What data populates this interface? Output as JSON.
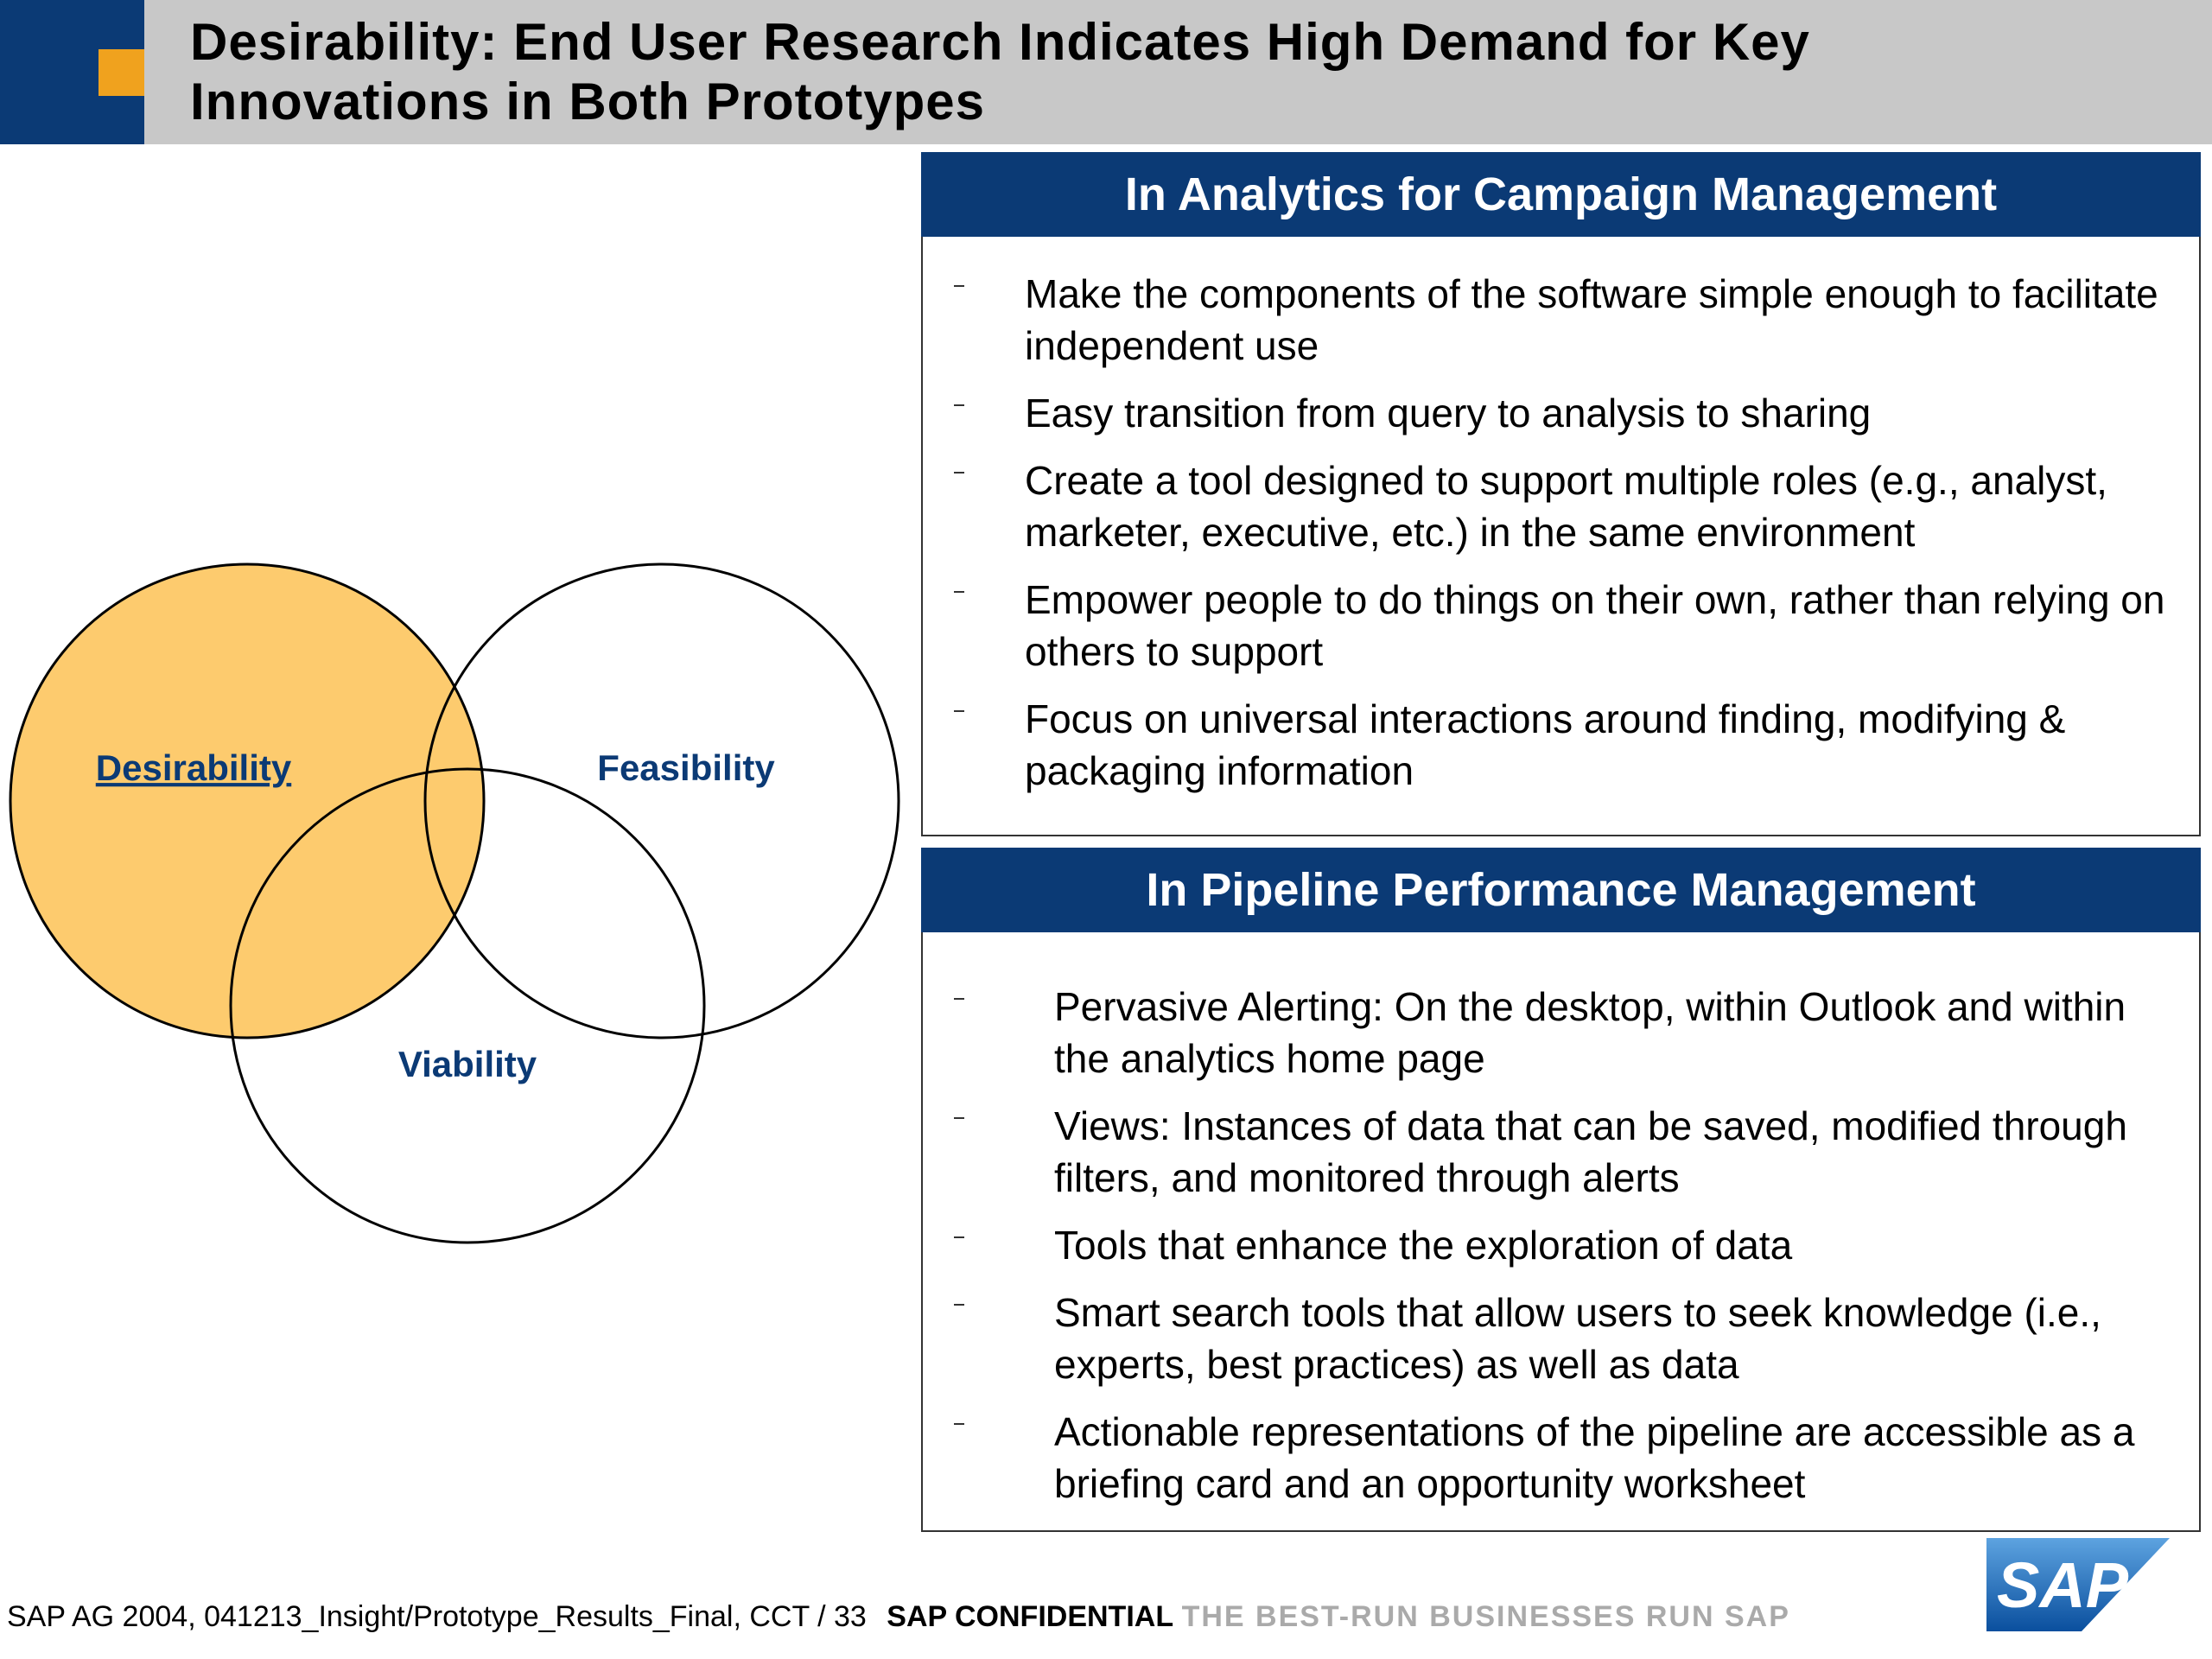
{
  "header": {
    "title": [
      "Desirability: End User Research Indicates High Demand for Key",
      "Innovations in Both Prototypes"
    ]
  },
  "venn": {
    "labels": [
      "Desirability",
      "Feasibility",
      "Viability"
    ]
  },
  "panels": [
    {
      "title": "In Analytics for Campaign Management",
      "bullets": [
        "Make the components of the software simple enough to facilitate independent use",
        "Easy transition from query to analysis to sharing",
        "Create a tool designed to support multiple roles (e.g., analyst, marketer, executive, etc.) in the same environment",
        "Empower people to do things on their own, rather  than relying on others to support",
        "Focus on universal interactions around finding, modifying & packaging information"
      ]
    },
    {
      "title": "In Pipeline Performance Management",
      "bullets": [
        "Pervasive Alerting: On the desktop, within Outlook and within the analytics home page",
        "Views: Instances of data that can be saved, modified through filters, and monitored through alerts",
        "Tools that enhance the exploration of data",
        "Smart search tools that allow users to seek knowledge (i.e., experts, best practices) as well as data",
        "Actionable representations of the pipeline are accessible as a briefing card and an opportunity worksheet"
      ]
    }
  ],
  "footer": {
    "source": "SAP AG 2004, 041213_Insight/Prototype_Results_Final, CCT / 33",
    "confidential": "SAP CONFIDENTIAL",
    "tagline": "THE BEST-RUN BUSINESSES RUN SAP",
    "logo": "SAP"
  }
}
